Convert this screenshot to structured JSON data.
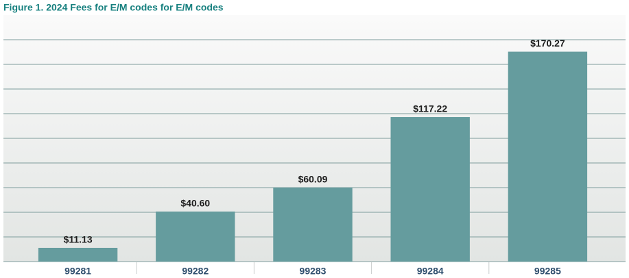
{
  "chart_data": {
    "type": "bar",
    "title": "Figure 1. 2024 Fees for E/M codes for E/M codes",
    "categories": [
      "99281",
      "99282",
      "99283",
      "99284",
      "99285"
    ],
    "values": [
      11.13,
      40.6,
      60.09,
      117.22,
      170.27
    ],
    "value_labels": [
      "$11.13",
      "$40.60",
      "$60.09",
      "$117.22",
      "$170.27"
    ],
    "color": "#659c9e",
    "ylim": [
      0,
      200
    ],
    "yticks": [
      0,
      20,
      40,
      60,
      80,
      100,
      120,
      140,
      160,
      180
    ],
    "grid": true
  }
}
